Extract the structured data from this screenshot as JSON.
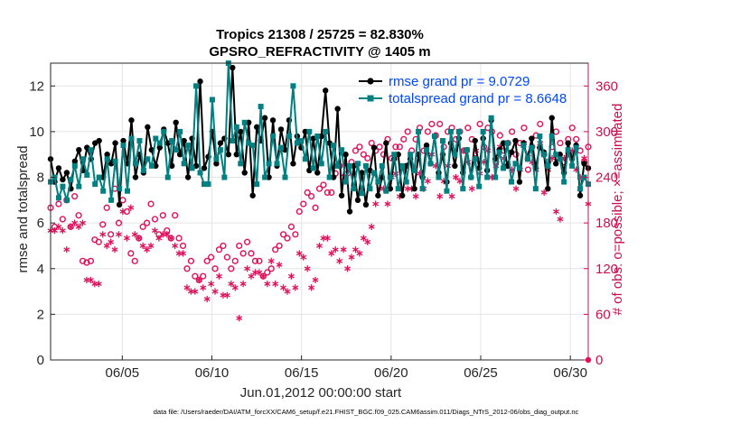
{
  "chart_data": {
    "type": "line",
    "title_line1": "Tropics 21308 / 25725 = 82.830%",
    "title_line2": "GPSRO_REFRACTIVITY @ 1405 m",
    "xlabel": "Jun.01,2012 00:00:00 start",
    "ylabel_left": "rmse and totalspread",
    "ylabel_right": "# of obs: o=possible; ×=assimilated",
    "xlim": [
      1,
      31
    ],
    "ylim_left": [
      0,
      13
    ],
    "ylim_right": [
      0,
      390
    ],
    "x_ticks": [
      5,
      10,
      15,
      20,
      25,
      30
    ],
    "x_tick_labels": [
      "06/05",
      "06/10",
      "06/15",
      "06/20",
      "06/25",
      "06/30"
    ],
    "y_ticks_left": [
      0,
      2,
      4,
      6,
      8,
      10,
      12
    ],
    "y_ticks_right": [
      0,
      60,
      120,
      180,
      240,
      300,
      360
    ],
    "footer": "data file: /Users/raeder/DAI/ATM_forcXX/CAM6_setup/f.e21.FHIST_BGC.f09_025.CAM6assim.011/Diags_NTrS_2012-06/obs_diag_output.nc",
    "colors": {
      "rmse": "#000000",
      "spread": "#008080",
      "obs": "#e0105a",
      "legend_text": "#0047ff",
      "right_axis": "#c8104e"
    },
    "series": [
      {
        "name": "rmse grand pr = 9.0729",
        "axis": "left",
        "values": [
          8.8,
          7.8,
          8.4,
          7.9,
          8.2,
          7.5,
          8.7,
          9.2,
          8.3,
          9.3,
          8.8,
          9.5,
          9.6,
          8.0,
          9.0,
          8.6,
          9.5,
          6.8,
          9.6,
          8.6,
          10.5,
          8.0,
          9.0,
          8.2,
          10.2,
          9.2,
          8.5,
          9.3,
          10.1,
          9.5,
          8.5,
          10.4,
          9.0,
          9.6,
          8.0,
          9.7,
          8.5,
          12.2,
          8.4,
          8.9,
          10.0,
          8.6,
          9.5,
          9.7,
          9.0,
          12.8,
          9.0,
          10.0,
          8.2,
          10.4,
          7.2,
          10.2,
          9.6,
          10.6,
          8.0,
          10.5,
          8.5,
          10.1,
          9.2,
          10.5,
          8.6,
          9.8,
          9.3,
          10.0,
          8.3,
          9.7,
          8.2,
          9.8,
          11.8,
          9.5,
          8.0,
          11.0,
          7.2,
          9.0,
          6.5,
          8.5,
          7.0,
          8.2,
          6.8,
          8.3,
          9.3,
          7.2,
          8.0,
          9.5,
          7.5,
          8.8,
          9.0,
          7.2,
          8.5,
          8.8,
          7.5,
          9.0,
          8.0,
          9.4,
          8.6,
          9.8,
          8.2,
          9.0,
          7.8,
          9.5,
          8.5,
          9.7,
          8.2,
          9.2,
          8.0,
          9.6,
          8.4,
          9.7,
          8.3,
          10.5,
          8.8,
          9.2,
          9.5,
          8.5,
          9.1,
          9.6,
          7.8,
          9.5,
          8.8,
          9.7,
          8.4,
          9.3,
          9.1,
          7.5,
          10.6,
          8.6,
          9.0,
          8.2,
          9.5,
          8.8,
          9.4,
          7.2,
          8.6,
          8.4
        ]
      },
      {
        "name": "totalspread grand pr = 8.6648",
        "axis": "left",
        "values": [
          7.8,
          8.0,
          7.1,
          7.6,
          7.0,
          7.9,
          8.5,
          7.6,
          8.8,
          8.1,
          9.2,
          7.7,
          8.0,
          7.4,
          8.8,
          7.0,
          8.7,
          7.5,
          9.4,
          7.4,
          9.7,
          8.6,
          9.6,
          8.3,
          8.8,
          8.5,
          9.7,
          9.5,
          10.0,
          8.0,
          9.6,
          9.2,
          10.0,
          8.6,
          9.4,
          8.4,
          12.0,
          8.2,
          7.7,
          7.7,
          11.4,
          8.8,
          9.2,
          8.0,
          13.0,
          9.6,
          10.2,
          8.6,
          10.4,
          9.5,
          9.4,
          7.7,
          11.1,
          8.0,
          8.6,
          9.8,
          8.6,
          9.3,
          8.0,
          9.8,
          12.0,
          9.5,
          9.6,
          8.8,
          10.0,
          8.4,
          9.8,
          8.6,
          10.0,
          8.0,
          9.4,
          8.5,
          9.2,
          7.8,
          8.5,
          7.5,
          8.6,
          7.3,
          8.5,
          7.5,
          8.2,
          7.8,
          8.5,
          7.4,
          8.0,
          9.0,
          7.5,
          8.5,
          7.8,
          9.0,
          8.3,
          10.0,
          7.5,
          9.2,
          8.6,
          9.8,
          8.0,
          9.6,
          7.4,
          10.0,
          9.0,
          10.0,
          7.5,
          9.2,
          8.0,
          8.8,
          7.6,
          10.0,
          8.0,
          10.6,
          8.0,
          9.1,
          8.4,
          9.5,
          7.8,
          8.6,
          8.4,
          9.4,
          8.8,
          9.3,
          7.5,
          9.8,
          9.0,
          8.5,
          9.8,
          9.0,
          8.8,
          7.8,
          9.2,
          8.5,
          9.3,
          7.5,
          8.0,
          7.7
        ]
      },
      {
        "name": "obs possible",
        "axis": "right",
        "marker": "o",
        "values": [
          200,
          175,
          205,
          185,
          210,
          175,
          215,
          190,
          130,
          128,
          130,
          158,
          155,
          178,
          200,
          165,
          225,
          180,
          210,
          195,
          140,
          130,
          160,
          175,
          180,
          205,
          185,
          165,
          190,
          170,
          160,
          190,
          160,
          150,
          120,
          130,
          110,
          105,
          110,
          130,
          135,
          120,
          145,
          150,
          135,
          120,
          130,
          150,
          140,
          155,
          140,
          130,
          130,
          110,
          115,
          120,
          145,
          150,
          165,
          160,
          175,
          165,
          195,
          205,
          220,
          215,
          200,
          225,
          230,
          220,
          220,
          245,
          255,
          240,
          245,
          260,
          275,
          280,
          270,
          265,
          285,
          275,
          280,
          270,
          290,
          265,
          280,
          280,
          290,
          300,
          275,
          290,
          305,
          275,
          300,
          310,
          295,
          310,
          280,
          300,
          305,
          290,
          300,
          275,
          305,
          290,
          265,
          310,
          280,
          305,
          300,
          260,
          295,
          275,
          285,
          300,
          270,
          285,
          305,
          250,
          280,
          295,
          310,
          270,
          260,
          280,
          300,
          285,
          260,
          290,
          305,
          290,
          275,
          260,
          280
        ]
      },
      {
        "name": "obs assimilated",
        "axis": "right",
        "marker": "*",
        "values": [
          170,
          170,
          175,
          170,
          145,
          175,
          180,
          175,
          180,
          105,
          105,
          100,
          100,
          165,
          150,
          155,
          145,
          165,
          195,
          160,
          200,
          165,
          160,
          150,
          145,
          150,
          170,
          160,
          165,
          165,
          160,
          150,
          140,
          140,
          95,
          90,
          90,
          105,
          95,
          80,
          100,
          90,
          110,
          85,
          85,
          100,
          95,
          55,
          100,
          120,
          110,
          115,
          115,
          110,
          100,
          130,
          100,
          125,
          95,
          90,
          110,
          95,
          140,
          135,
          120,
          95,
          105,
          150,
          160,
          160,
          140,
          145,
          130,
          145,
          120,
          135,
          145,
          140,
          160,
          155,
          175,
          205,
          225,
          225,
          205,
          240,
          245,
          215,
          250,
          225,
          225,
          215,
          245,
          225,
          235,
          270,
          255,
          215,
          235,
          255,
          215,
          240,
          235,
          275,
          260,
          225,
          275,
          245,
          260,
          275,
          240,
          255,
          280,
          265,
          255,
          250,
          225,
          250,
          285,
          270,
          260,
          250,
          285,
          220,
          250,
          265,
          195,
          185,
          265,
          270,
          275,
          250,
          240,
          265,
          205
        ]
      }
    ]
  }
}
